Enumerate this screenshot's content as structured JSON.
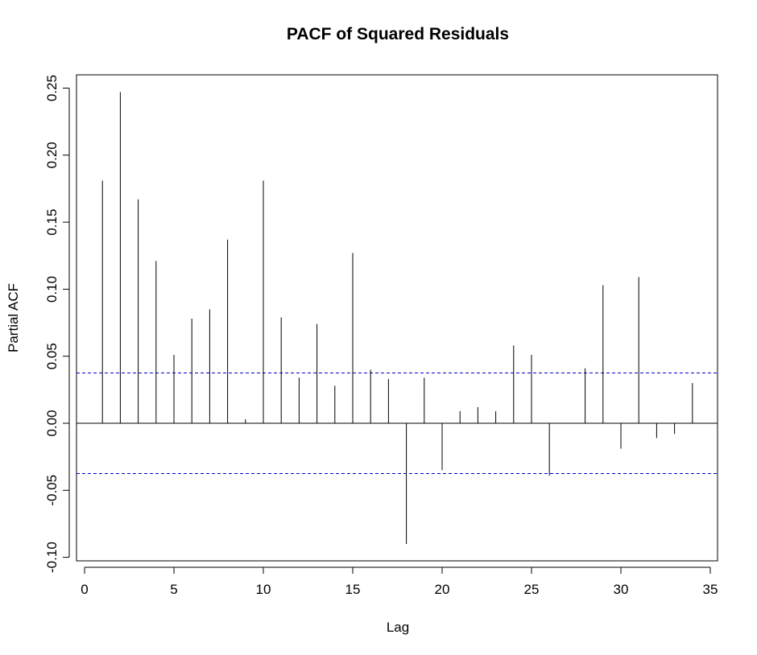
{
  "chart_data": {
    "type": "bar",
    "title": "PACF of Squared Residuals",
    "xlabel": "Lag",
    "ylabel": "Partial ACF",
    "xlim": [
      -0.3,
      35.3
    ],
    "ylim": [
      -0.1,
      0.26
    ],
    "x_ticks": [
      0,
      5,
      10,
      15,
      20,
      25,
      30,
      35
    ],
    "y_ticks": [
      -0.1,
      -0.05,
      0.0,
      0.05,
      0.1,
      0.15,
      0.2,
      0.25
    ],
    "y_tick_labels": [
      "-0.10",
      "-0.05",
      "0.00",
      "0.05",
      "0.10",
      "0.15",
      "0.20",
      "0.25"
    ],
    "grid": false,
    "lags": [
      1,
      2,
      3,
      4,
      5,
      6,
      7,
      8,
      9,
      10,
      11,
      12,
      13,
      14,
      15,
      16,
      17,
      18,
      19,
      20,
      21,
      22,
      23,
      24,
      25,
      26,
      27,
      28,
      29,
      30,
      31,
      32,
      33,
      34
    ],
    "values": [
      0.181,
      0.247,
      0.167,
      0.121,
      0.051,
      0.078,
      0.085,
      0.137,
      0.003,
      0.181,
      0.079,
      0.034,
      0.074,
      0.028,
      0.127,
      0.04,
      0.033,
      -0.09,
      0.034,
      -0.035,
      0.009,
      0.012,
      0.009,
      0.058,
      0.051,
      -0.039,
      0.0,
      0.041,
      0.103,
      -0.019,
      0.109,
      -0.011,
      -0.008,
      0.03
    ],
    "confidence_bound": 0.0375,
    "colors": {
      "bars": "#000000",
      "bounds": "#0000cc",
      "zero_line": "#000000"
    }
  }
}
